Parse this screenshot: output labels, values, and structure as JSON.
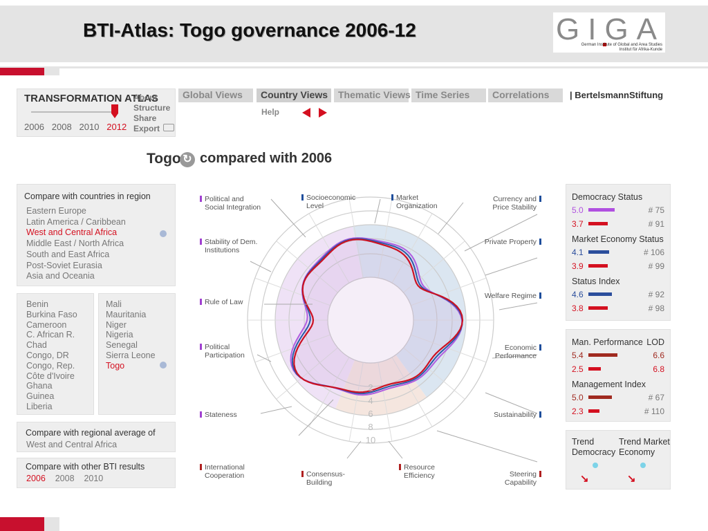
{
  "slide": {
    "title": "BTI-Atlas: Togo governance 2006-12",
    "logo_letters": "GIGA",
    "logo_line1": "German Institute of Global and Area Studies",
    "logo_line2": "Institut für Afrika-Kunde"
  },
  "atlas": {
    "brand": "TRANSFORMATION ATLAS",
    "years": [
      "2006",
      "2008",
      "2010",
      "2012"
    ],
    "selected_year": "2012",
    "side_links": [
      "About",
      "Structure",
      "Share",
      "Export"
    ]
  },
  "nav": {
    "tabs": [
      "Global Views",
      "Country Views",
      "Thematic Views",
      "Time Series",
      "Correlations"
    ],
    "active_tab": "Country Views",
    "help": "Help",
    "partner": "| BertelsmannStiftung"
  },
  "heading": {
    "country": "Togo",
    "compared": "compared with 2006"
  },
  "regions": {
    "title": "Compare with countries in region",
    "items": [
      "Eastern Europe",
      "Latin America / Caribbean",
      "West and Central Africa",
      "Middle East / North Africa",
      "South and East Africa",
      "Post-Soviet Eurasia",
      "Asia and Oceania"
    ],
    "selected": "West and Central Africa"
  },
  "countries": {
    "col1": [
      "Benin",
      "Burkina Faso",
      "Cameroon",
      "C. African R.",
      "Chad",
      "Congo, DR",
      "Congo, Rep.",
      "Côte d'Ivoire",
      "Ghana",
      "Guinea",
      "Liberia"
    ],
    "col2": [
      "Mali",
      "Mauritania",
      "Niger",
      "Nigeria",
      "Senegal",
      "Sierra Leone",
      "Togo"
    ],
    "selected": "Togo"
  },
  "regional_avg": {
    "title": "Compare with regional average of",
    "value": "West and Central Africa"
  },
  "other_results": {
    "title": "Compare with other BTI results",
    "years": [
      "2006",
      "2008",
      "2010"
    ],
    "selected": "2006"
  },
  "radar": {
    "labels_left": [
      {
        "text": "Political and Social Integration",
        "color": "#a040d0"
      },
      {
        "text": "Stability of Dem. Institutions",
        "color": "#a040d0"
      },
      {
        "text": "Rule of Law",
        "color": "#a040d0"
      },
      {
        "text": "Political Participation",
        "color": "#a040d0"
      },
      {
        "text": "Stateness",
        "color": "#a040d0"
      },
      {
        "text": "International Cooperation",
        "color": "#b02020"
      }
    ],
    "labels_top": [
      {
        "text": "Socioeconomic Level",
        "color": "#1f4e9c"
      },
      {
        "text": "Market Organization",
        "color": "#1f4e9c"
      }
    ],
    "labels_right": [
      {
        "text": "Currency and Price Stability",
        "color": "#1f4e9c"
      },
      {
        "text": "Private Property",
        "color": "#1f4e9c"
      },
      {
        "text": "Welfare Regime",
        "color": "#1f4e9c"
      },
      {
        "text": "Economic Performance",
        "color": "#1f4e9c"
      },
      {
        "text": "Sustainability",
        "color": "#1f4e9c"
      },
      {
        "text": "Steering Capability",
        "color": "#b02020"
      }
    ],
    "labels_bottom": [
      {
        "text": "Consensus-Building",
        "color": "#b02020"
      },
      {
        "text": "Resource Efficiency",
        "color": "#b02020"
      }
    ],
    "scale": [
      "2",
      "4",
      "6",
      "8",
      "10"
    ],
    "series_colors": {
      "current_political": "#b05ee0",
      "current_economic": "#2b5aa8",
      "compare": "#cc1122"
    }
  },
  "democracy": {
    "title": "Democracy Status",
    "v2012": "5.0",
    "r2012": "# 75",
    "v2006": "3.7",
    "r2006": "# 91",
    "c2012": "#b050e0"
  },
  "market": {
    "title": "Market Economy Status",
    "v2012": "4.1",
    "r2012": "# 106",
    "v2006": "3.9",
    "r2006": "# 99",
    "c2012": "#2b4e9c"
  },
  "status": {
    "title": "Status Index",
    "v2012": "4.6",
    "r2012": "# 92",
    "v2006": "3.8",
    "r2006": "# 98",
    "c2012": "#2b4e9c"
  },
  "man_perf": {
    "title": "Man. Performance",
    "lod": "LOD",
    "v2012": "5.4",
    "l2012": "6.6",
    "v2006": "2.5",
    "l2006": "6.8"
  },
  "mgmt": {
    "title": "Management Index",
    "v2012": "5.0",
    "r2012": "# 67",
    "v2006": "2.3",
    "r2006": "# 110"
  },
  "trend": {
    "democracy": "Trend Democracy",
    "market": "Trend Market Economy"
  }
}
